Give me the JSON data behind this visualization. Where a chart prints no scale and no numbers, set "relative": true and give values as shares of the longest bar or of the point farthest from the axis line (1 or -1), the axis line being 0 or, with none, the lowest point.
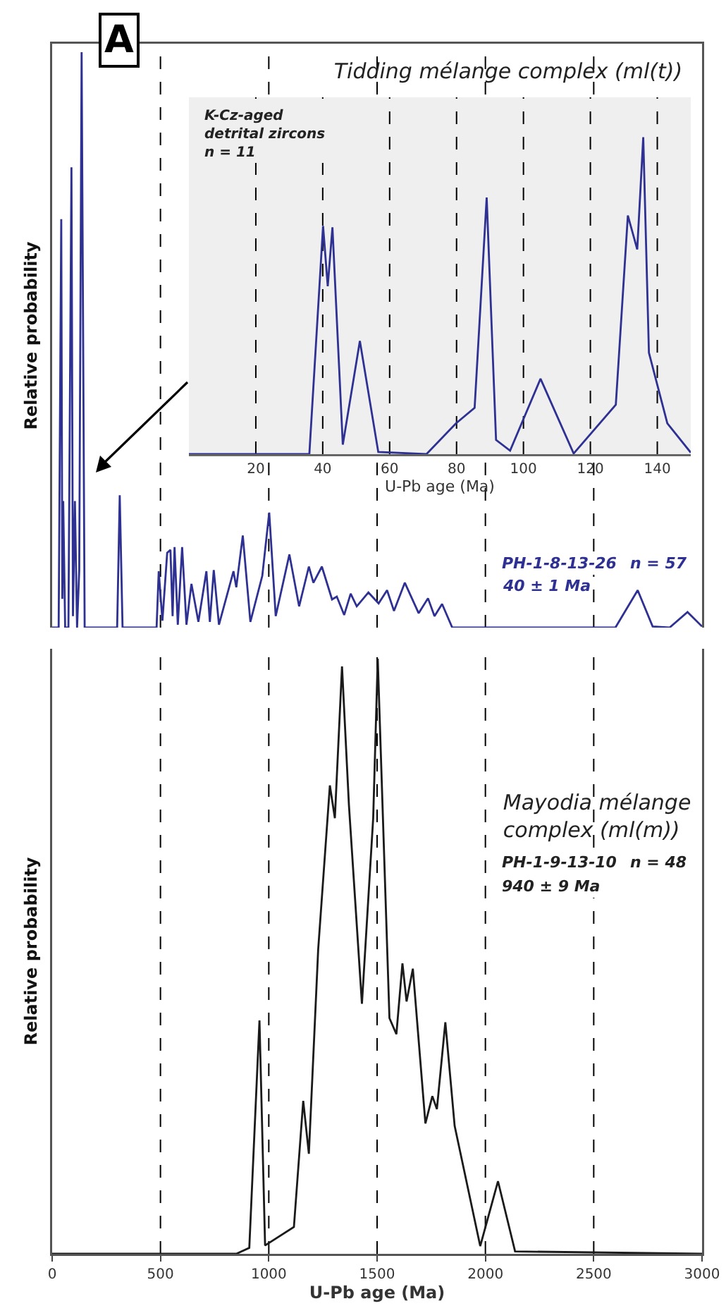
{
  "chart_data": [
    {
      "type": "line",
      "title": "Tidding mélange complex (ml(t))",
      "ylabel": "Relative probability",
      "relative": true,
      "xlim": [
        0,
        3000
      ],
      "grid": false,
      "series": [
        {
          "color": "#2e3192",
          "x": [
            0,
            30,
            42,
            47,
            51,
            60,
            75,
            89,
            96,
            105,
            115,
            125,
            136,
            150,
            300,
            312,
            325,
            482,
            492,
            509,
            531,
            546,
            556,
            565,
            580,
            600,
            620,
            643,
            675,
            712,
            728,
            746,
            770,
            837,
            850,
            880,
            915,
            970,
            1002,
            1032,
            1095,
            1140,
            1185,
            1206,
            1245,
            1292,
            1314,
            1348,
            1378,
            1406,
            1460,
            1507,
            1546,
            1578,
            1628,
            1692,
            1735,
            1765,
            1800,
            1847,
            2600,
            2703,
            2772,
            2850,
            2933,
            3000
          ],
          "values": [
            0,
            0,
            0.71,
            0.05,
            0.22,
            0,
            0,
            0.8,
            0.02,
            0.22,
            0,
            0.1,
            1.0,
            0,
            0,
            0.23,
            0,
            0,
            0.098,
            0.012,
            0.13,
            0.135,
            0.02,
            0.14,
            0.005,
            0.14,
            0.005,
            0.076,
            0.01,
            0.098,
            0.01,
            0.1,
            0.005,
            0.098,
            0.07,
            0.16,
            0.01,
            0.09,
            0.2,
            0.02,
            0.127,
            0.037,
            0.106,
            0.078,
            0.106,
            0.049,
            0.054,
            0.022,
            0.059,
            0.037,
            0.061,
            0.042,
            0.065,
            0.029,
            0.078,
            0.025,
            0.051,
            0.02,
            0.041,
            0,
            0,
            0.065,
            0.002,
            0,
            0.027,
            0.002
          ]
        }
      ],
      "ref_lines": [
        {
          "axis": "x",
          "value": 500,
          "line_style": "dashed",
          "color": "#000000"
        },
        {
          "axis": "x",
          "value": 1000,
          "line_style": "dashed",
          "color": "#000000"
        },
        {
          "axis": "x",
          "value": 1500,
          "line_style": "dashed",
          "color": "#000000"
        },
        {
          "axis": "x",
          "value": 2000,
          "line_style": "dashed",
          "color": "#000000"
        },
        {
          "axis": "x",
          "value": 2500,
          "line_style": "dashed",
          "color": "#000000"
        }
      ],
      "annotations": [
        "A",
        "PH-1-8-13-26",
        "n = 57",
        "40 ± 1 Ma"
      ]
    },
    {
      "type": "line",
      "xlabel": "U-Pb age (Ma)",
      "relative": true,
      "xlim": [
        0,
        150
      ],
      "xticks": [
        20,
        40,
        60,
        80,
        100,
        120,
        140
      ],
      "grid": false,
      "series": [
        {
          "color": "#2e3192",
          "x": [
            0,
            36,
            40.1,
            41.5,
            42.9,
            46,
            51.1,
            56.6,
            71,
            79.8,
            85.4,
            89,
            91.8,
            96,
            105.1,
            115,
            127.6,
            131.2,
            134,
            135.8,
            137.5,
            143,
            150
          ],
          "values": [
            0,
            0,
            0.72,
            0.53,
            0.716,
            0.03,
            0.357,
            0.007,
            0,
            0.097,
            0.146,
            0.81,
            0.045,
            0.011,
            0.238,
            0.002,
            0.156,
            0.753,
            0.646,
            1.0,
            0.32,
            0.097,
            0.005
          ]
        }
      ],
      "ref_lines": [
        {
          "axis": "x",
          "value": 20,
          "line_style": "dashed",
          "color": "#000000"
        },
        {
          "axis": "x",
          "value": 40,
          "line_style": "dashed",
          "color": "#000000"
        },
        {
          "axis": "x",
          "value": 60,
          "line_style": "dashed",
          "color": "#000000"
        },
        {
          "axis": "x",
          "value": 80,
          "line_style": "dashed",
          "color": "#000000"
        },
        {
          "axis": "x",
          "value": 100,
          "line_style": "dashed",
          "color": "#000000"
        },
        {
          "axis": "x",
          "value": 120,
          "line_style": "dashed",
          "color": "#000000"
        },
        {
          "axis": "x",
          "value": 140,
          "line_style": "dashed",
          "color": "#000000"
        }
      ],
      "annotations": [
        "K-Cz-aged\ndetrital zircons\nn = 11"
      ]
    },
    {
      "type": "line",
      "title": "Mayodia mélange\ncomplex (ml(m))",
      "xlabel": "U-Pb age (Ma)",
      "ylabel": "Relative probability",
      "relative": true,
      "xlim": [
        0,
        3000
      ],
      "xticks": [
        0,
        500,
        1000,
        1500,
        2000,
        2500,
        3000
      ],
      "grid": false,
      "series": [
        {
          "color": "#1a1a1a",
          "x": [
            0,
            850,
            910,
            957,
            983,
            1116,
            1159,
            1185,
            1228,
            1282,
            1305,
            1338,
            1370,
            1430,
            1482,
            1503,
            1557,
            1589,
            1617,
            1636,
            1665,
            1723,
            1755,
            1776,
            1815,
            1858,
            1976,
            2058,
            2137,
            3000
          ],
          "values": [
            0,
            0,
            0.01,
            0.392,
            0.014,
            0.045,
            0.257,
            0.168,
            0.511,
            0.787,
            0.732,
            0.987,
            0.754,
            0.42,
            0.732,
            1.0,
            0.396,
            0.369,
            0.488,
            0.424,
            0.479,
            0.219,
            0.265,
            0.243,
            0.389,
            0.215,
            0.013,
            0.122,
            0.004,
            0
          ]
        }
      ],
      "ref_lines": [
        {
          "axis": "x",
          "value": 500,
          "line_style": "dashed",
          "color": "#000000"
        },
        {
          "axis": "x",
          "value": 1000,
          "line_style": "dashed",
          "color": "#000000"
        },
        {
          "axis": "x",
          "value": 1500,
          "line_style": "dashed",
          "color": "#000000"
        },
        {
          "axis": "x",
          "value": 2000,
          "line_style": "dashed",
          "color": "#000000"
        },
        {
          "axis": "x",
          "value": 2500,
          "line_style": "dashed",
          "color": "#000000"
        }
      ],
      "annotations": [
        "PH-1-9-13-10",
        "n = 48",
        "940 ± 9 Ma"
      ]
    }
  ]
}
